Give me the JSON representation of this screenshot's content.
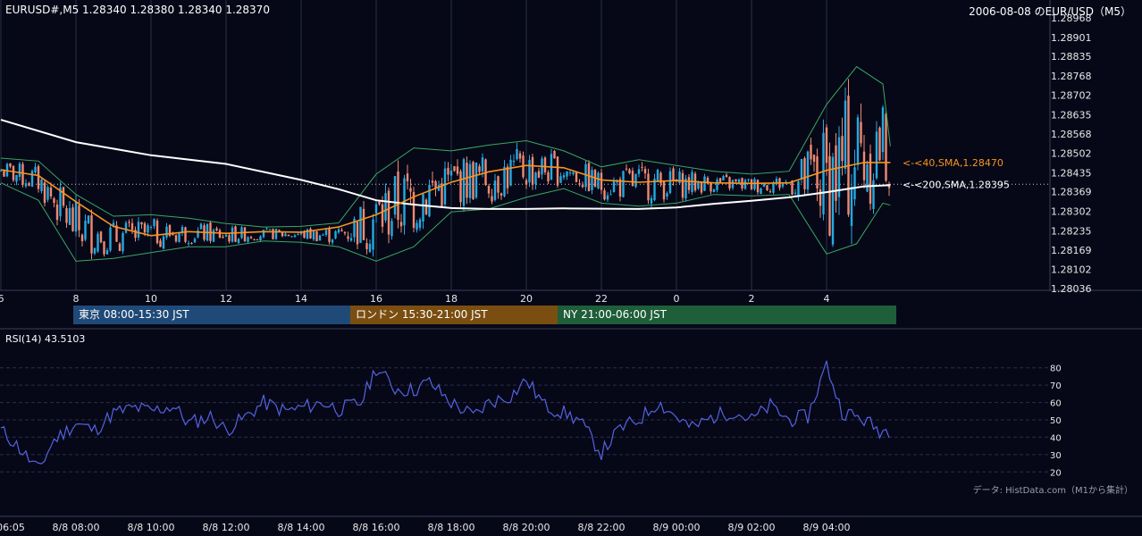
{
  "header": {
    "symbol_info": "EURUSD#,M5  1.28340 1.28380 1.28340 1.28370",
    "chart_title": "2006-08-08 のEUR/USD（M5）"
  },
  "sessions": [
    {
      "label": "東京 08:00-15:30 JST",
      "color": "#1f4a78"
    },
    {
      "label": "ロンドン 15:30-21:00 JST",
      "color": "#7a4e10"
    },
    {
      "label": "NY 21:00-06:00 JST",
      "color": "#1e5e38"
    }
  ],
  "indicator": {
    "label": "RSI(14) 43.5103"
  },
  "credit": "データ: HistData.com（M1から集計）",
  "colors": {
    "background": "#060818",
    "up": "#26a9e0",
    "down": "#f08a70",
    "sma40": "#f7941d",
    "sma200": "#ffffff",
    "bollinger": "#3aa860",
    "rsi": "#5562e0"
  },
  "chart_data": [
    {
      "type": "candlestick",
      "title": "2006-08-08 のEUR/USD（M5）",
      "ylim": [
        1.28036,
        1.28968
      ],
      "y_ticks": [
        "1.28968",
        "1.28901",
        "1.28835",
        "1.28768",
        "1.28702",
        "1.28635",
        "1.28568",
        "1.28502",
        "1.28435",
        "1.28369",
        "1.28302",
        "1.28235",
        "1.28169",
        "1.28102",
        "1.28036"
      ],
      "x_ticks": [
        "6",
        "8",
        "10",
        "12",
        "14",
        "16",
        "18",
        "20",
        "22",
        "0",
        "2",
        "4"
      ],
      "bottom_time_labels": [
        "06:05",
        "8/8 08:00",
        "8/8 10:00",
        "8/8 12:00",
        "8/8 14:00",
        "8/8 16:00",
        "8/8 18:00",
        "8/8 20:00",
        "8/8 22:00",
        "8/9 00:00",
        "8/9 02:00",
        "8/9 04:00"
      ],
      "current_price": 1.28395,
      "series": [
        {
          "name": "<-<40,SMA,1.28470",
          "last_value": 1.2847,
          "points": [
            [
              6.0,
              1.28445
            ],
            [
              7.0,
              1.28425
            ],
            [
              8.0,
              1.28335
            ],
            [
              9.0,
              1.2825
            ],
            [
              10.0,
              1.28218
            ],
            [
              11.0,
              1.28232
            ],
            [
              12.0,
              1.28226
            ],
            [
              13.0,
              1.28232
            ],
            [
              14.0,
              1.2823
            ],
            [
              15.0,
              1.28248
            ],
            [
              16.0,
              1.2829
            ],
            [
              17.0,
              1.28352
            ],
            [
              18.0,
              1.28402
            ],
            [
              19.0,
              1.28438
            ],
            [
              20.0,
              1.2846
            ],
            [
              21.0,
              1.28452
            ],
            [
              22.0,
              1.2841
            ],
            [
              23.0,
              1.28402
            ],
            [
              24.0,
              1.28408
            ],
            [
              25.0,
              1.284
            ],
            [
              26.0,
              1.28398
            ],
            [
              27.0,
              1.284
            ],
            [
              28.0,
              1.28443
            ],
            [
              29.0,
              1.2847
            ],
            [
              29.7,
              1.2847
            ]
          ]
        },
        {
          "name": "<-<200,SMA,1.28395",
          "last_value": 1.28395,
          "points": [
            [
              6.0,
              1.28617
            ],
            [
              8.0,
              1.2854
            ],
            [
              10.0,
              1.28495
            ],
            [
              12.0,
              1.28465
            ],
            [
              14.0,
              1.2841
            ],
            [
              15.0,
              1.28378
            ],
            [
              16.0,
              1.2834
            ],
            [
              17.0,
              1.28325
            ],
            [
              18.0,
              1.28313
            ],
            [
              19.0,
              1.2831
            ],
            [
              20.0,
              1.2831
            ],
            [
              21.0,
              1.28312
            ],
            [
              22.0,
              1.28311
            ],
            [
              23.0,
              1.2831
            ],
            [
              24.0,
              1.28315
            ],
            [
              25.0,
              1.28328
            ],
            [
              26.0,
              1.28338
            ],
            [
              27.0,
              1.2835
            ],
            [
              28.0,
              1.28368
            ],
            [
              29.0,
              1.28388
            ],
            [
              29.7,
              1.28392
            ]
          ]
        },
        {
          "name": "Bollinger Upper",
          "points": [
            [
              6.0,
              1.28485
            ],
            [
              7.0,
              1.28475
            ],
            [
              8.0,
              1.2836
            ],
            [
              9.0,
              1.28285
            ],
            [
              10.0,
              1.2829
            ],
            [
              11.0,
              1.28278
            ],
            [
              12.0,
              1.2826
            ],
            [
              13.0,
              1.28248
            ],
            [
              14.0,
              1.2825
            ],
            [
              15.0,
              1.28262
            ],
            [
              16.0,
              1.2843
            ],
            [
              17.0,
              1.2852
            ],
            [
              18.0,
              1.2851
            ],
            [
              19.0,
              1.2853
            ],
            [
              20.0,
              1.28545
            ],
            [
              21.0,
              1.2851
            ],
            [
              22.0,
              1.28455
            ],
            [
              23.0,
              1.2848
            ],
            [
              24.0,
              1.2846
            ],
            [
              25.0,
              1.2844
            ],
            [
              26.0,
              1.2843
            ],
            [
              27.0,
              1.2844
            ],
            [
              28.0,
              1.2867
            ],
            [
              28.8,
              1.288
            ],
            [
              29.5,
              1.2874
            ],
            [
              29.7,
              1.28526
            ]
          ]
        },
        {
          "name": "Bollinger Lower",
          "points": [
            [
              6.0,
              1.284
            ],
            [
              7.0,
              1.2834
            ],
            [
              8.0,
              1.2813
            ],
            [
              9.0,
              1.2814
            ],
            [
              10.0,
              1.2816
            ],
            [
              11.0,
              1.2818
            ],
            [
              12.0,
              1.2818
            ],
            [
              13.0,
              1.282
            ],
            [
              14.0,
              1.28195
            ],
            [
              15.0,
              1.2818
            ],
            [
              16.0,
              1.2813
            ],
            [
              17.0,
              1.2818
            ],
            [
              18.0,
              1.283
            ],
            [
              19.0,
              1.2831
            ],
            [
              20.0,
              1.2835
            ],
            [
              21.0,
              1.2838
            ],
            [
              22.0,
              1.2833
            ],
            [
              23.0,
              1.2832
            ],
            [
              24.0,
              1.2833
            ],
            [
              25.0,
              1.2836
            ],
            [
              26.0,
              1.28355
            ],
            [
              27.0,
              1.2836
            ],
            [
              28.0,
              1.28155
            ],
            [
              28.8,
              1.2819
            ],
            [
              29.5,
              1.2833
            ],
            [
              29.7,
              1.28323
            ]
          ]
        }
      ]
    },
    {
      "type": "line",
      "title": "RSI(14) 43.5103",
      "ylim": [
        15,
        85
      ],
      "y_ticks": [
        80,
        70,
        60,
        50,
        40,
        30,
        20
      ],
      "series": [
        {
          "name": "RSI(14)",
          "points": [
            [
              6.0,
              44
            ],
            [
              6.4,
              36
            ],
            [
              7.0,
              21
            ],
            [
              7.4,
              38
            ],
            [
              8.0,
              48
            ],
            [
              8.5,
              44
            ],
            [
              9.0,
              54
            ],
            [
              9.6,
              57
            ],
            [
              10.0,
              55
            ],
            [
              10.6,
              58
            ],
            [
              11.0,
              48
            ],
            [
              11.6,
              52
            ],
            [
              12.0,
              44
            ],
            [
              12.6,
              53
            ],
            [
              13.0,
              60
            ],
            [
              13.6,
              55
            ],
            [
              14.0,
              57
            ],
            [
              14.6,
              60
            ],
            [
              15.0,
              56
            ],
            [
              15.6,
              60
            ],
            [
              16.0,
              80
            ],
            [
              16.5,
              68
            ],
            [
              17.0,
              67
            ],
            [
              17.4,
              72
            ],
            [
              18.0,
              60
            ],
            [
              18.6,
              52
            ],
            [
              19.0,
              60
            ],
            [
              19.6,
              64
            ],
            [
              20.0,
              73
            ],
            [
              20.5,
              58
            ],
            [
              21.0,
              54
            ],
            [
              21.4,
              50
            ],
            [
              22.0,
              31
            ],
            [
              22.5,
              45
            ],
            [
              23.0,
              50
            ],
            [
              23.5,
              60
            ],
            [
              24.0,
              52
            ],
            [
              24.4,
              45
            ],
            [
              25.0,
              52
            ],
            [
              25.5,
              55
            ],
            [
              26.0,
              50
            ],
            [
              26.5,
              58
            ],
            [
              27.0,
              50
            ],
            [
              27.5,
              52
            ],
            [
              28.0,
              82
            ],
            [
              28.4,
              55
            ],
            [
              29.0,
              50
            ],
            [
              29.4,
              44
            ],
            [
              29.7,
              44
            ]
          ]
        }
      ]
    }
  ]
}
